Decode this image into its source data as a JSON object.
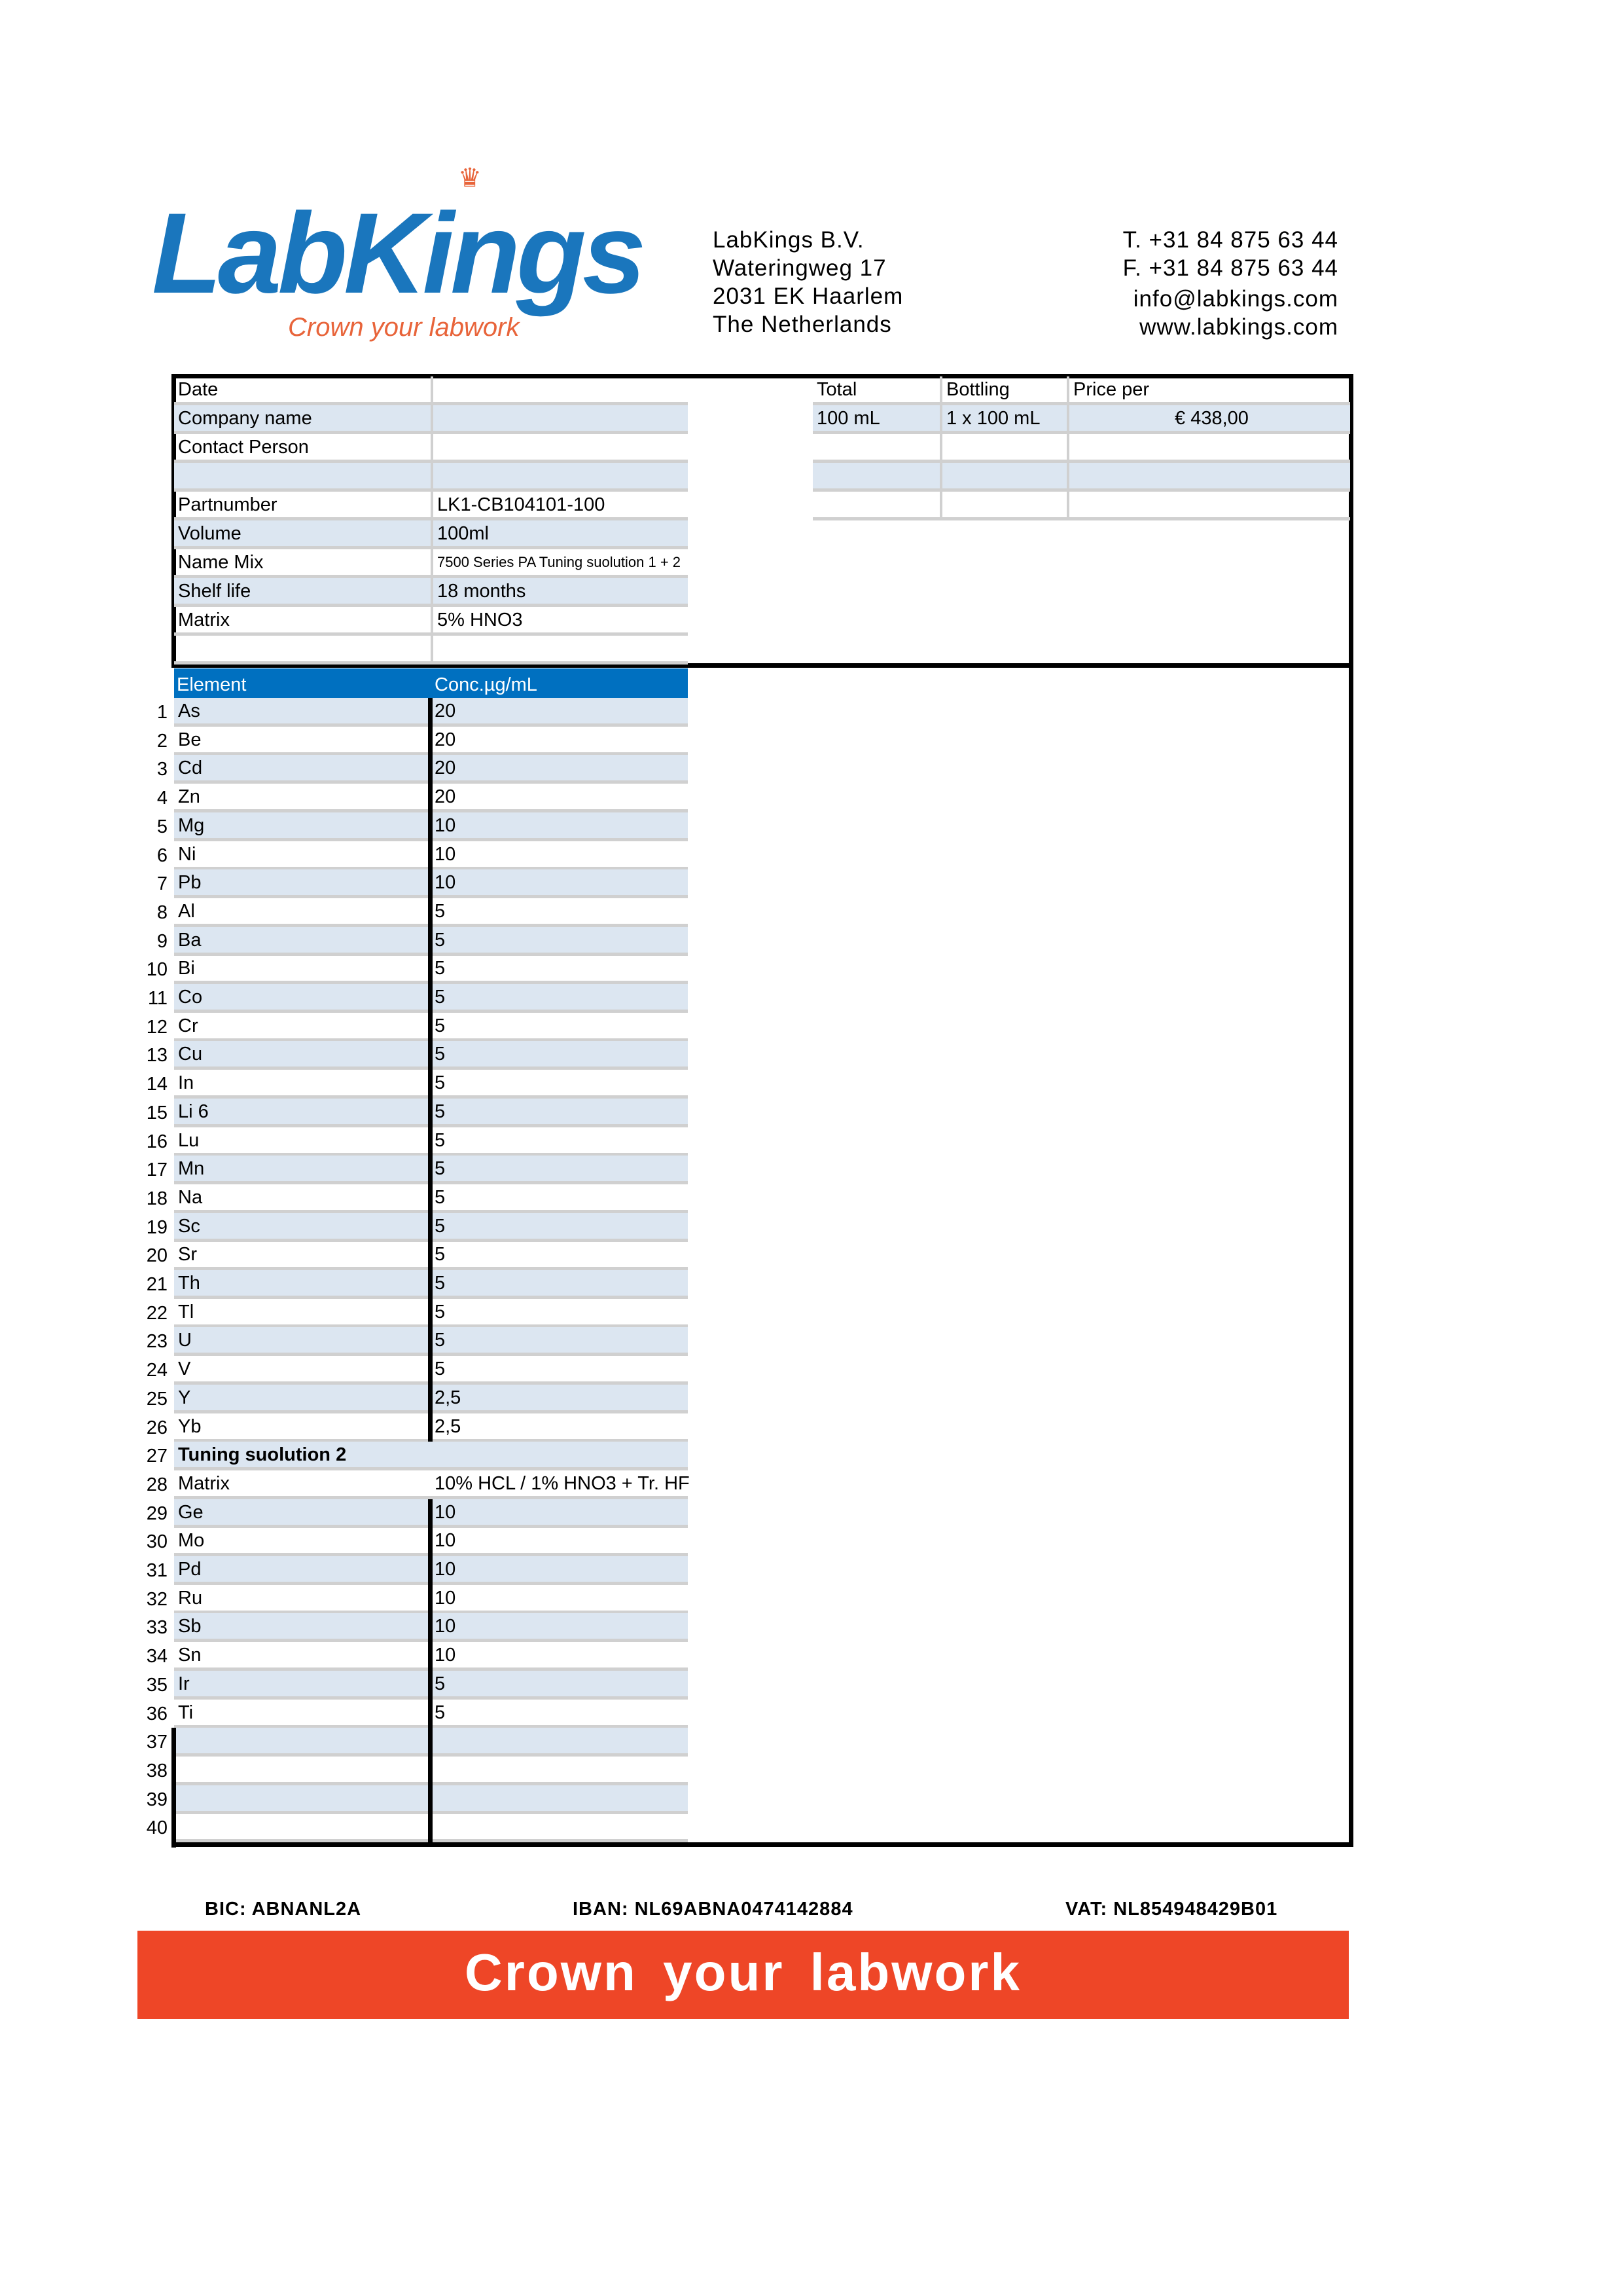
{
  "logo": {
    "name": "LabKings",
    "tagline": "Crown your labwork"
  },
  "company": {
    "name": "LabKings B.V.",
    "street": "Wateringweg 17",
    "city": "2031 EK Haarlem",
    "country": "The Netherlands"
  },
  "contact": {
    "phone": "T. +31 84 875 63 44",
    "fax": "F. +31 84 875 63 44",
    "email": "info@labkings.com",
    "web": "www.labkings.com"
  },
  "info": [
    {
      "label": "Date",
      "value": ""
    },
    {
      "label": "Company name",
      "value": ""
    },
    {
      "label": "Contact Person",
      "value": ""
    },
    {
      "label": "",
      "value": ""
    },
    {
      "label": "Partnumber",
      "value": "LK1-CB104101-100"
    },
    {
      "label": "Volume",
      "value": "100ml"
    },
    {
      "label": "Name Mix",
      "value": "7500 Series PA Tuning suolution 1 + 2"
    },
    {
      "label": "Shelf life",
      "value": "18 months"
    },
    {
      "label": "Matrix",
      "value": "5% HNO3"
    },
    {
      "label": "",
      "value": ""
    }
  ],
  "pricing": {
    "headers": [
      "Total",
      "Bottling",
      "Price per"
    ],
    "rows": [
      [
        "100 mL",
        "1 x 100 mL",
        "€ 438,00"
      ],
      [
        "",
        "",
        ""
      ],
      [
        "",
        "",
        ""
      ],
      [
        "",
        "",
        ""
      ]
    ]
  },
  "elements": {
    "headers": [
      "Element",
      "Conc.µg/mL"
    ],
    "rows": [
      [
        "1",
        "As",
        "20"
      ],
      [
        "2",
        "Be",
        "20"
      ],
      [
        "3",
        "Cd",
        "20"
      ],
      [
        "4",
        "Zn",
        "20"
      ],
      [
        "5",
        "Mg",
        "10"
      ],
      [
        "6",
        "Ni",
        "10"
      ],
      [
        "7",
        "Pb",
        "10"
      ],
      [
        "8",
        "Al",
        "5"
      ],
      [
        "9",
        "Ba",
        "5"
      ],
      [
        "10",
        "Bi",
        "5"
      ],
      [
        "11",
        "Co",
        "5"
      ],
      [
        "12",
        "Cr",
        "5"
      ],
      [
        "13",
        "Cu",
        "5"
      ],
      [
        "14",
        "In",
        "5"
      ],
      [
        "15",
        "Li 6",
        "5"
      ],
      [
        "16",
        "Lu",
        "5"
      ],
      [
        "17",
        "Mn",
        "5"
      ],
      [
        "18",
        "Na",
        "5"
      ],
      [
        "19",
        "Sc",
        "5"
      ],
      [
        "20",
        "Sr",
        "5"
      ],
      [
        "21",
        "Th",
        "5"
      ],
      [
        "22",
        "Tl",
        "5"
      ],
      [
        "23",
        "U",
        "5"
      ],
      [
        "24",
        "V",
        "5"
      ],
      [
        "25",
        "Y",
        "2,5"
      ],
      [
        "26",
        "Yb",
        "2,5"
      ],
      [
        "27",
        "Tuning suolution 2",
        ""
      ],
      [
        "28",
        "Matrix",
        "10% HCL / 1% HNO3 + Tr. HF"
      ],
      [
        "29",
        "Ge",
        "10"
      ],
      [
        "30",
        "Mo",
        "10"
      ],
      [
        "31",
        "Pd",
        "10"
      ],
      [
        "32",
        "Ru",
        "10"
      ],
      [
        "33",
        "Sb",
        "10"
      ],
      [
        "34",
        "Sn",
        "10"
      ],
      [
        "35",
        "Ir",
        "5"
      ],
      [
        "36",
        "Ti",
        "5"
      ],
      [
        "37",
        "",
        ""
      ],
      [
        "38",
        "",
        ""
      ],
      [
        "39",
        "",
        ""
      ],
      [
        "40",
        "",
        ""
      ]
    ]
  },
  "footer": {
    "bic": "BIC: ABNANL2A",
    "iban": "IBAN: NL69ABNA0474142884",
    "vat": "VAT: NL854948429B01",
    "slogan": "Crown your labwork"
  },
  "colors": {
    "brand_blue": "#1a76bd",
    "header_blue": "#0070c0",
    "row_blue": "#dce6f1",
    "banner_red": "#ee4627"
  }
}
